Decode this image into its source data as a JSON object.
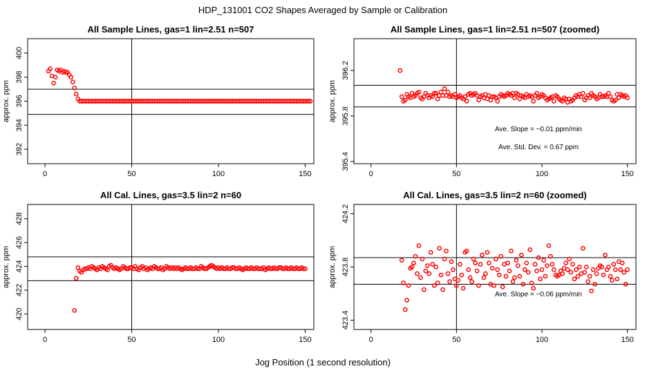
{
  "figure": {
    "title": "HDP_131001  CO2 Shapes Averaged by Sample or Calibration",
    "xlabel": "Jog Position (1 second resolution)"
  },
  "chart_data": [
    {
      "type": "scatter",
      "title": "All Sample Lines, gas=1 lin=2.51 n=507",
      "ylabel": "approx. ppm",
      "xlim": [
        -10,
        155
      ],
      "ylim": [
        390.8,
        401.2
      ],
      "xticks": [
        0,
        50,
        100,
        150
      ],
      "yticks": [
        392,
        394,
        396,
        398,
        400
      ],
      "hlines": [
        397.0,
        394.9
      ],
      "vline": 50,
      "point_color": "#ff0000",
      "x_range": [
        2,
        150
      ],
      "y": [
        398.5,
        398.7,
        398.1,
        397.5,
        398.0,
        398.6,
        398.5,
        398.6,
        398.4,
        398.5,
        398.4,
        398.4,
        398.2,
        398.0,
        397.6,
        397.1,
        396.6,
        396.2,
        396.0,
        396.0,
        396.0,
        396.0,
        396.0,
        396.0,
        396.0,
        396.0,
        396.0,
        396.0,
        396.0,
        396.0,
        396.0,
        396.0,
        396.0,
        396.0,
        396.0,
        396.0,
        396.0,
        396.0,
        396.0,
        396.0,
        396.0,
        396.0,
        396.0,
        396.0,
        396.0,
        396.0,
        396.0,
        396.0,
        396.0,
        396.0,
        396.0,
        396.0,
        396.0,
        396.0,
        396.0,
        396.0,
        396.0,
        396.0,
        396.0,
        396.0,
        396.0,
        396.0,
        396.0,
        396.0,
        396.0,
        396.0,
        396.0,
        396.0,
        396.0,
        396.0,
        396.0,
        396.0,
        396.0,
        396.0,
        396.0,
        396.0,
        396.0,
        396.0,
        396.0,
        396.0,
        396.0,
        396.0,
        396.0,
        396.0,
        396.0,
        396.0,
        396.0,
        396.0,
        396.0,
        396.0,
        396.0,
        396.0,
        396.0,
        396.0,
        396.0,
        396.0,
        396.0,
        396.0,
        396.0,
        396.0,
        396.0,
        396.0,
        396.0,
        396.0,
        396.0,
        396.0,
        396.0,
        396.0,
        396.0,
        396.0,
        396.0,
        396.0,
        396.0,
        396.0,
        396.0,
        396.0,
        396.0,
        396.0,
        396.0,
        396.0,
        396.0,
        396.0,
        396.0,
        396.0,
        396.0,
        396.0,
        396.0,
        396.0,
        396.0,
        396.0,
        396.0,
        396.0,
        396.0,
        396.0,
        396.0,
        396.0,
        396.0,
        396.0,
        396.0,
        396.0,
        396.0,
        396.0,
        396.0,
        396.0,
        396.0,
        396.0,
        396.0,
        396.0,
        396.0,
        396.0,
        396.0,
        396.0
      ],
      "annotations": []
    },
    {
      "type": "scatter",
      "title": "All Sample Lines, gas=1 lin=2.51 n=507 (zoomed)",
      "ylabel": "approx. ppm",
      "xlim": [
        -10,
        155
      ],
      "ylim": [
        395.38,
        396.48
      ],
      "xticks": [
        0,
        50,
        100,
        150
      ],
      "yticks": [
        395.4,
        395.8,
        396.2
      ],
      "ytick_labels": [
        "395.4",
        "395.8",
        "396.2"
      ],
      "hlines": [
        396.07,
        395.88
      ],
      "vline": 50,
      "point_color": "#ff0000",
      "x_range": [
        17,
        150
      ],
      "y": [
        396.2,
        395.97,
        395.93,
        395.94,
        395.99,
        395.97,
        395.96,
        396.0,
        395.97,
        395.98,
        396.0,
        396.01,
        395.96,
        395.95,
        395.97,
        396.0,
        395.98,
        395.96,
        395.98,
        395.97,
        396.0,
        396.0,
        395.95,
        395.98,
        396.01,
        395.98,
        396.04,
        395.98,
        396.01,
        395.97,
        395.98,
        395.97,
        395.99,
        395.96,
        395.97,
        395.98,
        395.96,
        395.95,
        395.97,
        395.93,
        395.99,
        396.0,
        395.98,
        395.99,
        396.0,
        395.98,
        395.94,
        395.97,
        395.98,
        395.96,
        395.99,
        395.95,
        395.98,
        395.94,
        395.97,
        395.97,
        395.96,
        395.93,
        395.97,
        395.99,
        395.98,
        395.97,
        395.98,
        396.0,
        395.99,
        395.98,
        396.0,
        395.96,
        396.0,
        395.99,
        395.95,
        395.98,
        395.97,
        395.96,
        395.99,
        395.97,
        395.98,
        395.97,
        395.93,
        395.98,
        396.0,
        395.96,
        395.97,
        395.99,
        395.98,
        395.96,
        395.94,
        395.95,
        395.96,
        395.97,
        395.93,
        395.98,
        395.97,
        395.95,
        395.94,
        395.93,
        395.96,
        395.95,
        395.92,
        395.95,
        395.93,
        395.94,
        395.96,
        395.98,
        395.97,
        395.99,
        395.97,
        396.0,
        395.94,
        395.96,
        395.98,
        395.96,
        396.0,
        395.98,
        395.97,
        395.95,
        395.96,
        395.99,
        395.97,
        395.97,
        395.98,
        395.97,
        396.0,
        395.97,
        395.94,
        395.93,
        395.94,
        395.99,
        395.96,
        395.99,
        395.98,
        395.97,
        395.98,
        395.96
      ],
      "annotations": [
        "Ave. Slope =  −0.01  ppm/min",
        "Ave. Std. Dev. =  0.67  ppm"
      ]
    },
    {
      "type": "scatter",
      "title": "All Cal. Lines, gas=3.5 lin=2 n=60",
      "ylabel": "approx. ppm",
      "xlim": [
        -10,
        155
      ],
      "ylim": [
        418.7,
        429.2
      ],
      "xticks": [
        0,
        50,
        100,
        150
      ],
      "yticks": [
        420,
        422,
        424,
        426,
        428
      ],
      "hlines": [
        424.8,
        422.8
      ],
      "vline": 50,
      "point_color": "#ff0000",
      "x_range": [
        17,
        150
      ],
      "y": [
        420.3,
        423.0,
        423.9,
        423.6,
        423.5,
        423.7,
        423.8,
        423.8,
        423.9,
        423.8,
        424.0,
        423.9,
        423.8,
        423.7,
        423.9,
        423.8,
        424.0,
        423.9,
        423.8,
        423.7,
        424.0,
        424.1,
        423.9,
        423.8,
        423.9,
        423.8,
        423.7,
        423.8,
        424.0,
        423.9,
        423.8,
        423.8,
        423.9,
        423.9,
        423.8,
        424.0,
        423.8,
        423.7,
        423.9,
        424.0,
        423.8,
        423.9,
        423.7,
        423.8,
        423.9,
        423.8,
        424.0,
        423.9,
        423.8,
        423.8,
        423.9,
        423.7,
        423.8,
        424.0,
        423.9,
        423.8,
        423.9,
        423.8,
        423.9,
        423.8,
        423.9,
        423.8,
        423.7,
        423.8,
        423.9,
        423.8,
        423.8,
        423.9,
        423.8,
        423.8,
        423.9,
        423.8,
        423.8,
        424.0,
        423.9,
        423.8,
        423.8,
        423.9,
        424.0,
        424.1,
        424.0,
        423.9,
        423.8,
        423.9,
        423.8,
        423.9,
        423.8,
        423.8,
        423.9,
        423.8,
        423.8,
        423.9,
        423.9,
        423.8,
        423.8,
        423.9,
        423.8,
        423.7,
        423.8,
        423.9,
        423.8,
        423.8,
        423.9,
        423.8,
        423.8,
        423.9,
        423.8,
        423.8,
        423.8,
        423.9,
        423.7,
        423.8,
        423.9,
        423.8,
        423.8,
        423.9,
        423.8,
        423.8,
        423.9,
        423.9,
        423.8,
        423.8,
        423.9,
        423.8,
        423.8,
        423.9,
        423.8,
        423.8,
        423.9,
        423.8,
        423.8,
        423.9,
        423.8,
        423.8
      ],
      "annotations": []
    },
    {
      "type": "scatter",
      "title": "All Cal. Lines, gas=3.5 lin=2 n=60 (zoomed)",
      "ylabel": "approx. ppm",
      "xlim": [
        -10,
        155
      ],
      "ylim": [
        423.33,
        424.27
      ],
      "xticks": [
        0,
        50,
        100,
        150
      ],
      "yticks": [
        423.4,
        423.8,
        424.2
      ],
      "ytick_labels": [
        "423.4",
        "423.8",
        "424.2"
      ],
      "hlines": [
        423.87,
        423.67
      ],
      "vline": 50,
      "point_color": "#ff0000",
      "x_range": [
        18,
        150
      ],
      "y": [
        423.85,
        423.68,
        423.48,
        423.55,
        423.66,
        423.79,
        423.8,
        423.83,
        423.88,
        423.75,
        423.96,
        423.72,
        423.86,
        423.63,
        423.77,
        423.81,
        423.75,
        423.91,
        423.82,
        423.66,
        423.8,
        423.68,
        423.94,
        423.74,
        423.63,
        423.86,
        423.92,
        423.75,
        423.69,
        423.84,
        423.78,
        423.71,
        423.66,
        423.7,
        423.82,
        423.74,
        423.64,
        423.91,
        423.92,
        423.78,
        423.72,
        423.69,
        423.86,
        423.83,
        423.77,
        423.66,
        423.82,
        423.89,
        423.72,
        423.75,
        423.91,
        423.83,
        423.67,
        423.79,
        423.66,
        423.86,
        423.78,
        423.74,
        423.88,
        423.65,
        423.82,
        423.73,
        423.83,
        423.77,
        423.92,
        423.69,
        423.72,
        423.85,
        423.81,
        423.73,
        423.89,
        423.67,
        423.78,
        423.83,
        423.76,
        423.93,
        423.68,
        423.64,
        423.82,
        423.77,
        423.87,
        423.71,
        423.78,
        423.85,
        423.73,
        423.81,
        423.96,
        423.88,
        423.82,
        423.78,
        423.74,
        423.73,
        423.74,
        423.77,
        423.75,
        423.79,
        423.83,
        423.78,
        423.86,
        423.76,
        423.82,
        423.71,
        423.78,
        423.73,
        423.8,
        423.75,
        423.94,
        423.76,
        423.8,
        423.69,
        423.73,
        423.62,
        423.78,
        423.67,
        423.75,
        423.79,
        423.81,
        423.8,
        423.74,
        423.89,
        423.78,
        423.8,
        423.73,
        423.7,
        423.82,
        423.78,
        423.71,
        423.84,
        423.78,
        423.83,
        423.76,
        423.67,
        423.78
      ],
      "annotations": [
        "Ave. Slope =  −0.06  ppm/min"
      ]
    }
  ]
}
